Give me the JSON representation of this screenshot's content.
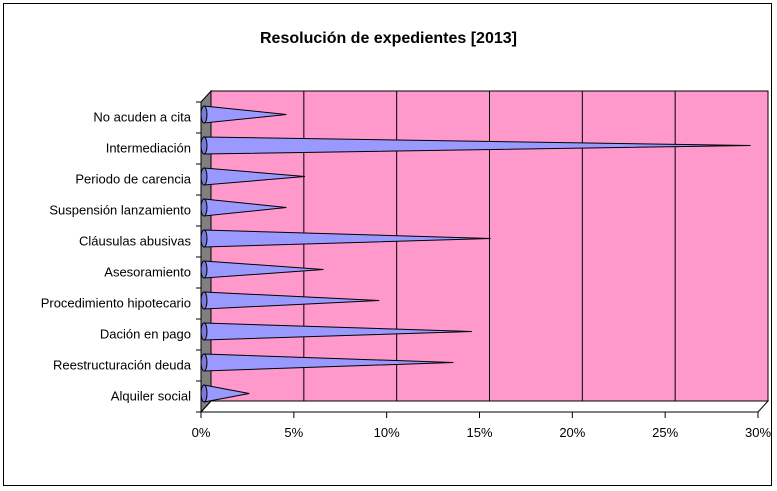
{
  "chart_data": {
    "type": "bar",
    "orientation": "horizontal",
    "style": "3d-cone",
    "title": "Resolución de expedientes [2013]",
    "categories": [
      "No acuden a cita",
      "Intermediación",
      "Periodo de carencia",
      "Suspensión lanzamiento",
      "Cláusulas abusivas",
      "Asesoramiento",
      "Procedimiento hipotecario",
      "Dación en pago",
      "Reestructuración deuda",
      "Alquiler social"
    ],
    "values": [
      4.3,
      29.3,
      5.3,
      4.3,
      15.3,
      6.3,
      9.3,
      14.3,
      13.3,
      2.3
    ],
    "xlim": [
      0,
      30
    ],
    "xticks": [
      "0%",
      "5%",
      "10%",
      "15%",
      "20%",
      "25%",
      "30%"
    ],
    "xtick_values": [
      0,
      5,
      10,
      15,
      20,
      25,
      30
    ],
    "grid": true,
    "legend": "none",
    "colors": {
      "plot_background": "#ff99cc",
      "bar_fill": "#9999ff",
      "wall_side": "#808080",
      "wall_top": "#c0c0c0",
      "gridline": "#000000"
    }
  }
}
